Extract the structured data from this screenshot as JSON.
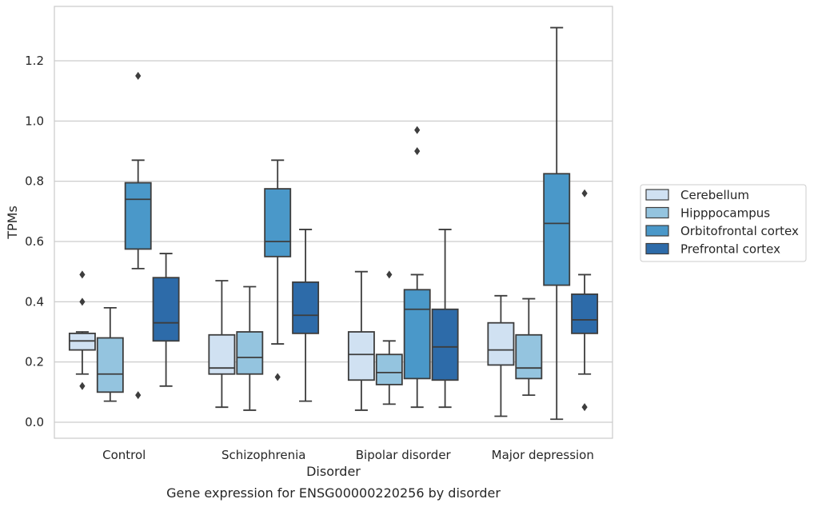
{
  "chart_data": {
    "type": "box",
    "title": "",
    "caption": "Gene expression for ENSG00000220256 by disorder",
    "xlabel": "Disorder",
    "ylabel": "TPMs",
    "ylim": [
      -0.05,
      1.38
    ],
    "yticks": [
      "0.0",
      "0.2",
      "0.4",
      "0.6",
      "0.8",
      "1.0",
      "1.2"
    ],
    "ytick_values": [
      0.0,
      0.2,
      0.4,
      0.6,
      0.8,
      1.0,
      1.2
    ],
    "grid": "horizontal",
    "legend_position": "right",
    "categories": [
      "Control",
      "Schizophrenia",
      "Bipolar disorder",
      "Major depression"
    ],
    "series": [
      {
        "name": "Cerebellum",
        "color": "#d0e1f2",
        "boxes": [
          {
            "whislo": 0.16,
            "q1": 0.24,
            "med": 0.27,
            "q3": 0.295,
            "whishi": 0.3,
            "fliers": [
              0.49,
              0.4,
              0.12
            ]
          },
          {
            "whislo": 0.05,
            "q1": 0.16,
            "med": 0.18,
            "q3": 0.29,
            "whishi": 0.47,
            "fliers": []
          },
          {
            "whislo": 0.04,
            "q1": 0.14,
            "med": 0.225,
            "q3": 0.3,
            "whishi": 0.5,
            "fliers": []
          },
          {
            "whislo": 0.02,
            "q1": 0.19,
            "med": 0.24,
            "q3": 0.33,
            "whishi": 0.42,
            "fliers": []
          }
        ]
      },
      {
        "name": "Hipppocampus",
        "color": "#94c4df",
        "boxes": [
          {
            "whislo": 0.07,
            "q1": 0.1,
            "med": 0.16,
            "q3": 0.28,
            "whishi": 0.38,
            "fliers": []
          },
          {
            "whislo": 0.04,
            "q1": 0.16,
            "med": 0.215,
            "q3": 0.3,
            "whishi": 0.45,
            "fliers": []
          },
          {
            "whislo": 0.06,
            "q1": 0.125,
            "med": 0.165,
            "q3": 0.225,
            "whishi": 0.27,
            "fliers": [
              0.49
            ]
          },
          {
            "whislo": 0.09,
            "q1": 0.145,
            "med": 0.18,
            "q3": 0.29,
            "whishi": 0.41,
            "fliers": []
          }
        ]
      },
      {
        "name": "Orbitofrontal cortex",
        "color": "#4a98c9",
        "boxes": [
          {
            "whislo": 0.51,
            "q1": 0.575,
            "med": 0.74,
            "q3": 0.795,
            "whishi": 0.87,
            "fliers": [
              1.15,
              0.09
            ]
          },
          {
            "whislo": 0.26,
            "q1": 0.55,
            "med": 0.6,
            "q3": 0.775,
            "whishi": 0.87,
            "fliers": [
              0.15
            ]
          },
          {
            "whislo": 0.05,
            "q1": 0.145,
            "med": 0.375,
            "q3": 0.44,
            "whishi": 0.49,
            "fliers": [
              0.97,
              0.9
            ]
          },
          {
            "whislo": 0.01,
            "q1": 0.455,
            "med": 0.66,
            "q3": 0.825,
            "whishi": 1.31,
            "fliers": []
          }
        ]
      },
      {
        "name": "Prefrontal cortex",
        "color": "#2d6ba9",
        "boxes": [
          {
            "whislo": 0.12,
            "q1": 0.27,
            "med": 0.33,
            "q3": 0.48,
            "whishi": 0.56,
            "fliers": []
          },
          {
            "whislo": 0.07,
            "q1": 0.295,
            "med": 0.355,
            "q3": 0.465,
            "whishi": 0.64,
            "fliers": []
          },
          {
            "whislo": 0.05,
            "q1": 0.14,
            "med": 0.25,
            "q3": 0.375,
            "whishi": 0.64,
            "fliers": []
          },
          {
            "whislo": 0.16,
            "q1": 0.295,
            "med": 0.34,
            "q3": 0.425,
            "whishi": 0.49,
            "fliers": [
              0.76,
              0.05
            ]
          }
        ]
      }
    ]
  }
}
